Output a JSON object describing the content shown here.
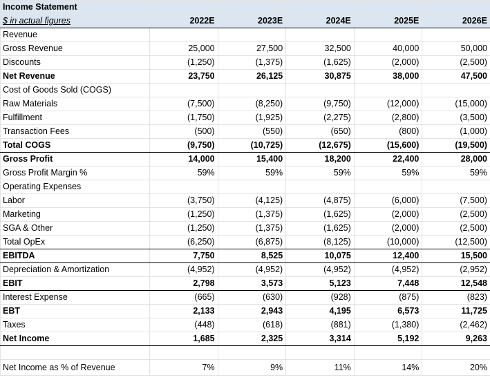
{
  "header": {
    "title": "Income Statement",
    "subtitle": "$ in actual figures",
    "years": [
      "2022E",
      "2023E",
      "2024E",
      "2025E",
      "2026E"
    ]
  },
  "rows": [
    {
      "label": "Revenue",
      "values": [
        "",
        "",
        "",
        "",
        ""
      ]
    },
    {
      "label": "Gross Revenue",
      "values": [
        "25,000",
        "27,500",
        "32,500",
        "40,000",
        "50,000"
      ]
    },
    {
      "label": "Discounts",
      "values": [
        "(1,250)",
        "(1,375)",
        "(1,625)",
        "(2,000)",
        "(2,500)"
      ]
    },
    {
      "label": "Net Revenue",
      "values": [
        "23,750",
        "26,125",
        "30,875",
        "38,000",
        "47,500"
      ]
    },
    {
      "label": "Cost of Goods Sold (COGS)",
      "values": [
        "",
        "",
        "",
        "",
        ""
      ]
    },
    {
      "label": "Raw Materials",
      "values": [
        "(7,500)",
        "(8,250)",
        "(9,750)",
        "(12,000)",
        "(15,000)"
      ]
    },
    {
      "label": "Fulfillment",
      "values": [
        "(1,750)",
        "(1,925)",
        "(2,275)",
        "(2,800)",
        "(3,500)"
      ]
    },
    {
      "label": "Transaction Fees",
      "values": [
        "(500)",
        "(550)",
        "(650)",
        "(800)",
        "(1,000)"
      ]
    },
    {
      "label": "Total COGS",
      "values": [
        "(9,750)",
        "(10,725)",
        "(12,675)",
        "(15,600)",
        "(19,500)"
      ]
    },
    {
      "label": "Gross Profit",
      "values": [
        "14,000",
        "15,400",
        "18,200",
        "22,400",
        "28,000"
      ]
    },
    {
      "label": "Gross Profit Margin %",
      "values": [
        "59%",
        "59%",
        "59%",
        "59%",
        "59%"
      ]
    },
    {
      "label": "Operating Expenses",
      "values": [
        "",
        "",
        "",
        "",
        ""
      ]
    },
    {
      "label": "Labor",
      "values": [
        "(3,750)",
        "(4,125)",
        "(4,875)",
        "(6,000)",
        "(7,500)"
      ]
    },
    {
      "label": "Marketing",
      "values": [
        "(1,250)",
        "(1,375)",
        "(1,625)",
        "(2,000)",
        "(2,500)"
      ]
    },
    {
      "label": "SGA & Other",
      "values": [
        "(1,250)",
        "(1,375)",
        "(1,625)",
        "(2,000)",
        "(2,500)"
      ]
    },
    {
      "label": "Total OpEx",
      "values": [
        "(6,250)",
        "(6,875)",
        "(8,125)",
        "(10,000)",
        "(12,500)"
      ]
    },
    {
      "label": "EBITDA",
      "values": [
        "7,750",
        "8,525",
        "10,075",
        "12,400",
        "15,500"
      ]
    },
    {
      "label": "Depreciation & Amortization",
      "values": [
        "(4,952)",
        "(4,952)",
        "(4,952)",
        "(4,952)",
        "(2,952)"
      ]
    },
    {
      "label": "EBIT",
      "values": [
        "2,798",
        "3,573",
        "5,123",
        "7,448",
        "12,548"
      ]
    },
    {
      "label": "Interest Expense",
      "values": [
        "(665)",
        "(630)",
        "(928)",
        "(875)",
        "(823)"
      ]
    },
    {
      "label": "EBT",
      "values": [
        "2,133",
        "2,943",
        "4,195",
        "6,573",
        "11,725"
      ]
    },
    {
      "label": "Taxes",
      "values": [
        "(448)",
        "(618)",
        "(881)",
        "(1,380)",
        "(2,462)"
      ]
    },
    {
      "label": "Net Income",
      "values": [
        "1,685",
        "2,325",
        "3,314",
        "5,192",
        "9,263"
      ]
    },
    {
      "label": "",
      "values": [
        "",
        "",
        "",
        "",
        ""
      ]
    },
    {
      "label": "Net Income as % of Revenue",
      "values": [
        "7%",
        "9%",
        "11%",
        "14%",
        "20%"
      ]
    }
  ]
}
